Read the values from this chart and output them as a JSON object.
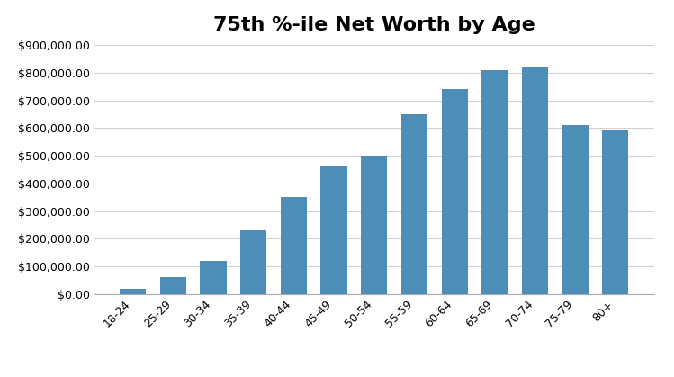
{
  "title": "75th %-ile Net Worth by Age",
  "categories": [
    "18-24",
    "25-29",
    "30-34",
    "35-39",
    "40-44",
    "45-49",
    "50-54",
    "55-59",
    "60-64",
    "65-69",
    "70-74",
    "75-79",
    "80+"
  ],
  "values": [
    20000,
    62000,
    120000,
    230000,
    350000,
    460000,
    500000,
    650000,
    740000,
    810000,
    820000,
    610000,
    595000
  ],
  "bar_color": "#4e8db8",
  "ylim": [
    0,
    900000
  ],
  "ytick_interval": 100000,
  "background_color": "#ffffff",
  "title_fontsize": 16,
  "tick_fontsize": 9,
  "grid_color": "#d0d0d0"
}
